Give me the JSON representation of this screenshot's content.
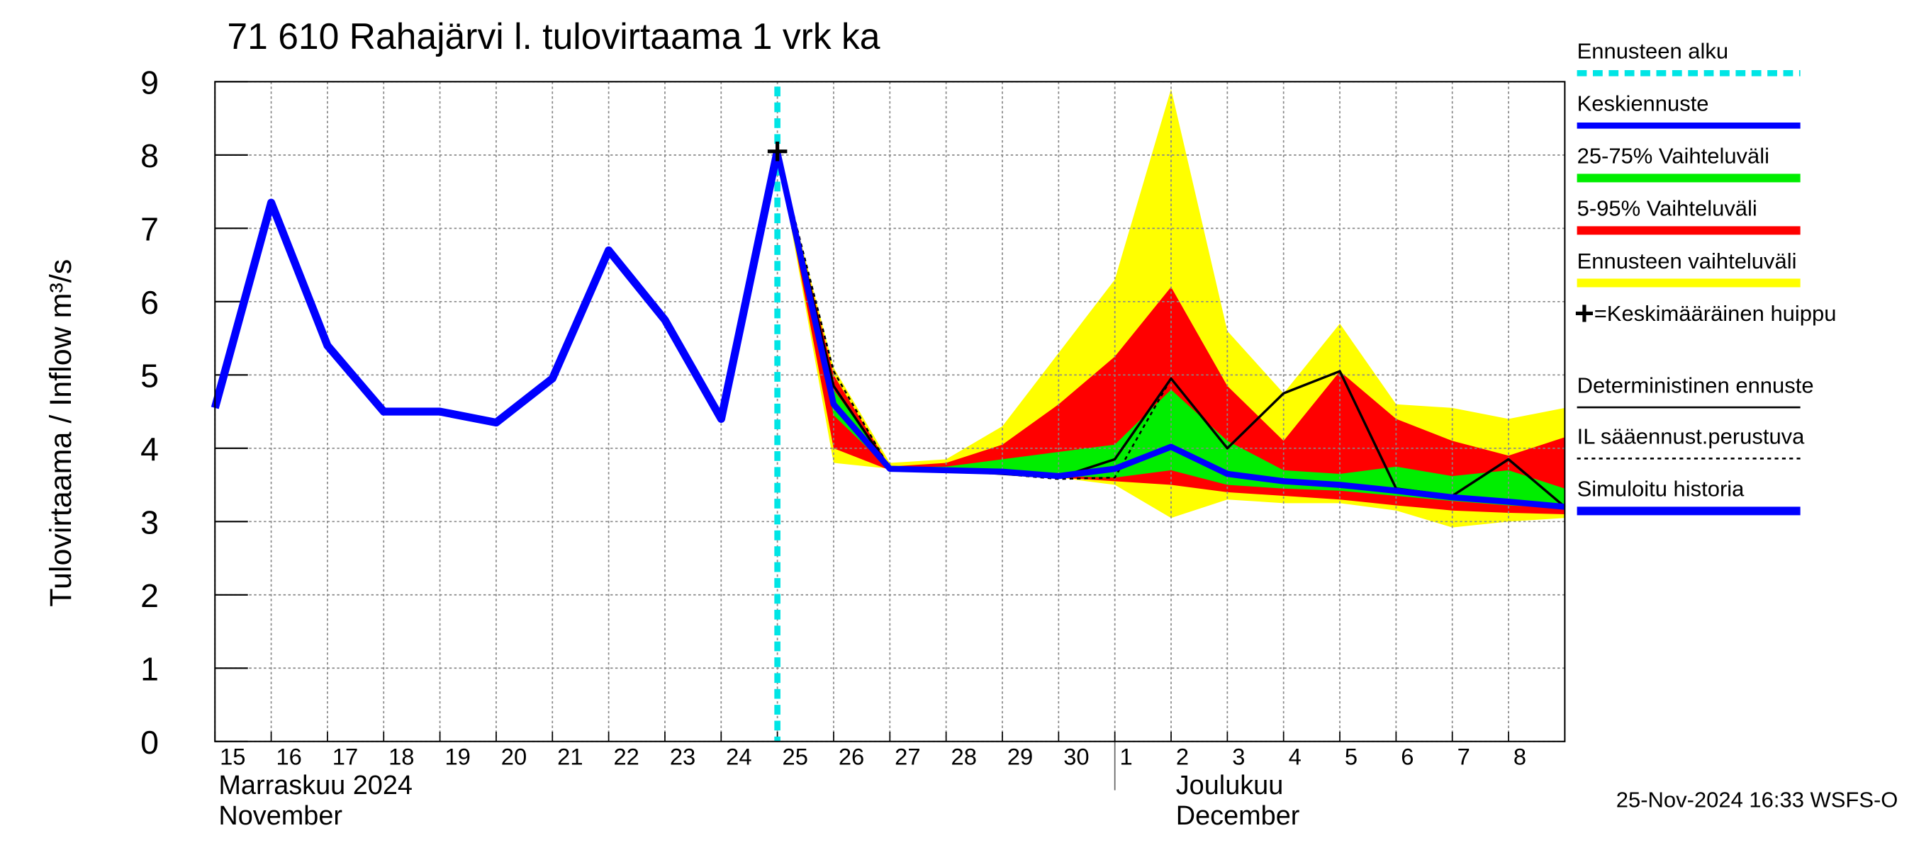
{
  "chart_data": {
    "type": "line",
    "title": "71 610 Rahajärvi l. tulovirtaama 1 vrk ka",
    "y_label": "Tulovirtaama / Inflow    m³/s",
    "timestamp": "25-Nov-2024 16:33 WSFS-O",
    "month_labels": [
      "Marraskuu 2024",
      "November",
      "Joulukuu",
      "December"
    ],
    "x": [
      0,
      1,
      2,
      3,
      4,
      5,
      6,
      7,
      8,
      9,
      10,
      11,
      12,
      13,
      14,
      15,
      16,
      17,
      18,
      19,
      20,
      21,
      22,
      23,
      24
    ],
    "xlim": [
      0,
      24
    ],
    "xticks": [
      {
        "value": 0,
        "label": "15"
      },
      {
        "value": 1,
        "label": "16"
      },
      {
        "value": 2,
        "label": "17"
      },
      {
        "value": 3,
        "label": "18"
      },
      {
        "value": 4,
        "label": "19"
      },
      {
        "value": 5,
        "label": "20"
      },
      {
        "value": 6,
        "label": "21"
      },
      {
        "value": 7,
        "label": "22"
      },
      {
        "value": 8,
        "label": "23"
      },
      {
        "value": 9,
        "label": "24"
      },
      {
        "value": 10,
        "label": "25"
      },
      {
        "value": 11,
        "label": "26"
      },
      {
        "value": 12,
        "label": "27"
      },
      {
        "value": 13,
        "label": "28"
      },
      {
        "value": 14,
        "label": "29"
      },
      {
        "value": 15,
        "label": "30"
      },
      {
        "value": 16,
        "label": "1"
      },
      {
        "value": 17,
        "label": "2"
      },
      {
        "value": 18,
        "label": "3"
      },
      {
        "value": 19,
        "label": "4"
      },
      {
        "value": 20,
        "label": "5"
      },
      {
        "value": 21,
        "label": "6"
      },
      {
        "value": 22,
        "label": "7"
      },
      {
        "value": 23,
        "label": "8"
      }
    ],
    "ylim": [
      0,
      9
    ],
    "yticks": [
      0,
      1,
      2,
      3,
      4,
      5,
      6,
      7,
      8,
      9
    ],
    "grid": true,
    "forecast_start": {
      "name": "Ennusteen alku",
      "x": 10,
      "color": "#00e5e5"
    },
    "bands": [
      {
        "name": "Ennusteen vaihteluväli",
        "color": "#ffff00",
        "lower": [
          null,
          null,
          null,
          null,
          null,
          null,
          null,
          null,
          null,
          null,
          8.05,
          3.8,
          3.72,
          3.68,
          3.65,
          3.6,
          3.5,
          3.05,
          3.3,
          3.25,
          3.25,
          3.15,
          2.92,
          3.0,
          3.05
        ],
        "upper": [
          null,
          null,
          null,
          null,
          null,
          null,
          null,
          null,
          null,
          null,
          8.05,
          5.1,
          3.8,
          3.85,
          4.3,
          5.3,
          6.3,
          8.9,
          5.6,
          4.75,
          5.7,
          4.6,
          4.55,
          4.4,
          4.55
        ]
      },
      {
        "name": "5-95% Vaihteluväli",
        "color": "#ff0000",
        "lower": [
          null,
          null,
          null,
          null,
          null,
          null,
          null,
          null,
          null,
          null,
          8.05,
          4.0,
          3.7,
          3.68,
          3.65,
          3.6,
          3.55,
          3.5,
          3.4,
          3.35,
          3.3,
          3.22,
          3.15,
          3.12,
          3.1
        ],
        "upper": [
          null,
          null,
          null,
          null,
          null,
          null,
          null,
          null,
          null,
          null,
          8.05,
          5.0,
          3.75,
          3.8,
          4.05,
          4.6,
          5.25,
          6.2,
          4.85,
          4.1,
          5.05,
          4.4,
          4.1,
          3.9,
          4.15
        ]
      },
      {
        "name": "25-75% Vaihteluväli",
        "color": "#00ee00",
        "lower": [
          null,
          null,
          null,
          null,
          null,
          null,
          null,
          null,
          null,
          null,
          8.05,
          4.45,
          3.71,
          3.69,
          3.67,
          3.62,
          3.6,
          3.7,
          3.5,
          3.45,
          3.42,
          3.35,
          3.28,
          3.22,
          3.18
        ],
        "upper": [
          null,
          null,
          null,
          null,
          null,
          null,
          null,
          null,
          null,
          null,
          8.05,
          4.8,
          3.74,
          3.75,
          3.85,
          3.95,
          4.05,
          4.8,
          4.1,
          3.7,
          3.65,
          3.75,
          3.62,
          3.7,
          3.45
        ]
      }
    ],
    "series": [
      {
        "name": "Simuloitu historia",
        "color": "#0000ff",
        "style": "thick",
        "values": [
          4.55,
          7.35,
          5.4,
          4.5,
          4.5,
          4.35,
          4.95,
          6.7,
          5.75,
          4.4,
          8.05,
          null,
          null,
          null,
          null,
          null,
          null,
          null,
          null,
          null,
          null,
          null,
          null,
          null,
          null
        ]
      },
      {
        "name": "Keskiennuste",
        "color": "#0000ff",
        "style": "medium",
        "values": [
          null,
          null,
          null,
          null,
          null,
          null,
          null,
          null,
          null,
          null,
          8.05,
          4.6,
          3.72,
          3.7,
          3.68,
          3.62,
          3.72,
          4.02,
          3.65,
          3.55,
          3.5,
          3.42,
          3.33,
          3.27,
          3.2
        ]
      },
      {
        "name": "Deterministinen ennuste",
        "color": "#000000",
        "style": "thin",
        "values": [
          null,
          null,
          null,
          null,
          null,
          null,
          null,
          null,
          null,
          null,
          8.05,
          4.85,
          3.72,
          3.7,
          3.65,
          3.6,
          3.85,
          4.95,
          4.0,
          4.75,
          5.05,
          3.45,
          3.35,
          3.85,
          3.2
        ]
      },
      {
        "name": "IL sääennust.perustuva",
        "color": "#000000",
        "style": "dashed",
        "values": [
          null,
          null,
          null,
          null,
          null,
          null,
          null,
          null,
          null,
          null,
          8.05,
          5.05,
          3.72,
          3.7,
          3.65,
          3.58,
          3.6,
          4.95,
          4.0,
          null,
          null,
          null,
          null,
          null,
          null
        ]
      }
    ],
    "peak": {
      "name": "=Keskimääräinen huippu",
      "x": 10,
      "y": 8.05
    }
  }
}
